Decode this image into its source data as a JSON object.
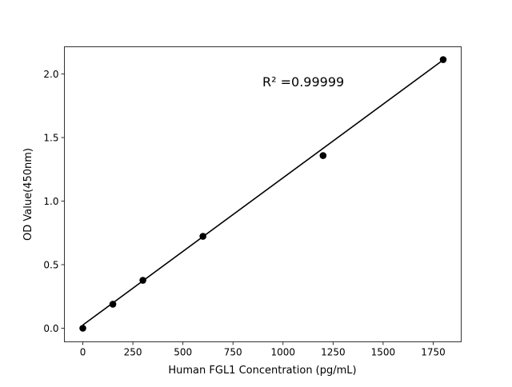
{
  "chart_data": {
    "type": "scatter",
    "title": "",
    "xlabel": "Human FGL1 Concentration (pg/mL)",
    "ylabel": "OD Value(450nm)",
    "xlim": [
      -92,
      1890
    ],
    "ylim": [
      -0.107,
      2.214
    ],
    "xticks": [
      0,
      250,
      500,
      750,
      1000,
      1250,
      1500,
      1750
    ],
    "xtick_labels": [
      "0",
      "250",
      "500",
      "750",
      "1000",
      "1250",
      "1500",
      "1750"
    ],
    "yticks": [
      0.0,
      0.5,
      1.0,
      1.5,
      2.0
    ],
    "ytick_labels": [
      "0.0",
      "0.5",
      "1.0",
      "1.5",
      "2.0"
    ],
    "grid": false,
    "points": {
      "x": [
        0,
        150,
        300,
        600,
        1200,
        1800
      ],
      "y": [
        0.0,
        0.189,
        0.377,
        0.723,
        1.358,
        2.113
      ],
      "color": "#000000"
    },
    "fit_line": {
      "x": [
        0,
        1800
      ],
      "y": [
        0.025,
        2.11
      ],
      "color": "#000000"
    },
    "annotation": "R² =0.99999"
  }
}
